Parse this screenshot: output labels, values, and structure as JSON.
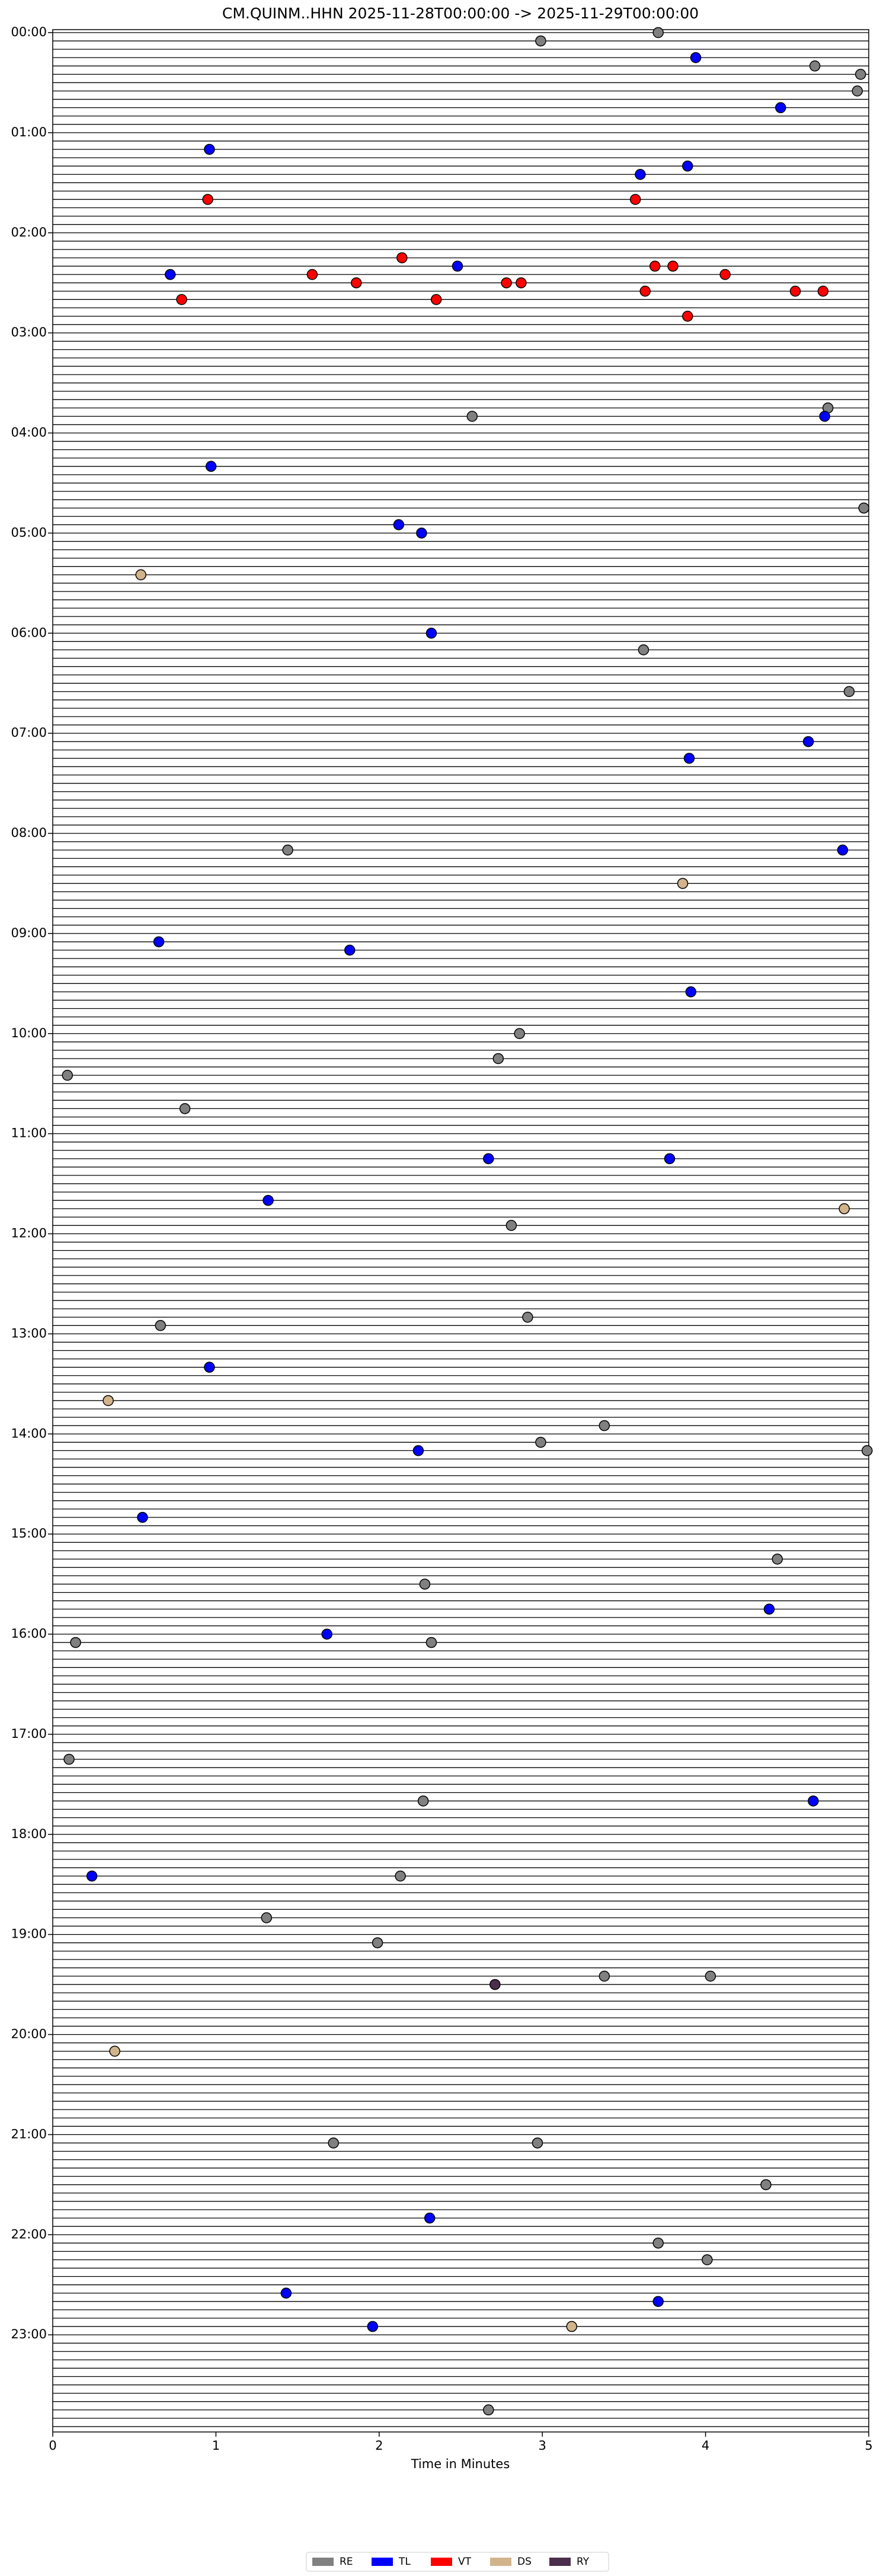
{
  "chart_data": {
    "type": "scatter",
    "title": "CM.QUINM..HHN  2025-11-28T00:00:00 -> 2025-11-29T00:00:00",
    "x_label": "Time in Minutes",
    "xlim": [
      0,
      5
    ],
    "xticks": [
      0,
      1,
      2,
      3,
      4,
      5
    ],
    "ylim": [
      0,
      1440
    ],
    "yticks": [
      {
        "value": 0,
        "label": "00:00"
      },
      {
        "value": 60,
        "label": "01:00"
      },
      {
        "value": 120,
        "label": "02:00"
      },
      {
        "value": 180,
        "label": "03:00"
      },
      {
        "value": 240,
        "label": "04:00"
      },
      {
        "value": 300,
        "label": "05:00"
      },
      {
        "value": 360,
        "label": "06:00"
      },
      {
        "value": 420,
        "label": "07:00"
      },
      {
        "value": 480,
        "label": "08:00"
      },
      {
        "value": 540,
        "label": "09:00"
      },
      {
        "value": 600,
        "label": "10:00"
      },
      {
        "value": 660,
        "label": "11:00"
      },
      {
        "value": 720,
        "label": "12:00"
      },
      {
        "value": 780,
        "label": "13:00"
      },
      {
        "value": 840,
        "label": "14:00"
      },
      {
        "value": 900,
        "label": "15:00"
      },
      {
        "value": 960,
        "label": "16:00"
      },
      {
        "value": 1020,
        "label": "17:00"
      },
      {
        "value": 1080,
        "label": "18:00"
      },
      {
        "value": 1140,
        "label": "19:00"
      },
      {
        "value": 1200,
        "label": "20:00"
      },
      {
        "value": 1260,
        "label": "21:00"
      },
      {
        "value": 1320,
        "label": "22:00"
      },
      {
        "value": 1380,
        "label": "23:00"
      }
    ],
    "legend": "lower center",
    "series": [
      {
        "name": "RE",
        "color": "#808080",
        "x": [
          3.71,
          2.99,
          4.67,
          4.95,
          4.93,
          2.57,
          4.75,
          4.97,
          3.62,
          4.88,
          1.44,
          2.86,
          2.73,
          0.09,
          0.81,
          2.81,
          0.66,
          2.91,
          3.38,
          2.99,
          4.99,
          4.44,
          2.28,
          2.32,
          0.14,
          0.1,
          2.27,
          2.13,
          1.31,
          1.99,
          3.38,
          4.03,
          1.72,
          2.97,
          4.37,
          3.71,
          4.01,
          2.67
        ],
        "y": [
          0,
          5,
          20,
          25,
          35,
          230,
          225,
          285,
          370,
          395,
          490,
          600,
          615,
          625,
          645,
          715,
          775,
          770,
          835,
          845,
          850,
          915,
          930,
          965,
          965,
          1035,
          1060,
          1105,
          1130,
          1145,
          1165,
          1165,
          1265,
          1265,
          1290,
          1325,
          1335,
          1425
        ]
      },
      {
        "name": "TL",
        "color": "#0000ff",
        "x": [
          3.94,
          4.46,
          0.96,
          3.89,
          3.6,
          0.72,
          2.48,
          4.73,
          0.97,
          2.12,
          2.26,
          2.32,
          3.9,
          4.63,
          4.84,
          0.65,
          1.82,
          3.91,
          2.67,
          3.78,
          1.32,
          0.96,
          2.24,
          0.55,
          4.39,
          1.68,
          4.66,
          0.24,
          2.31,
          1.43,
          1.96,
          3.71
        ],
        "y": [
          15,
          45,
          70,
          80,
          85,
          145,
          140,
          230,
          260,
          295,
          300,
          360,
          435,
          425,
          490,
          545,
          550,
          575,
          675,
          675,
          700,
          800,
          850,
          890,
          945,
          960,
          1060,
          1105,
          1310,
          1355,
          1375,
          1360
        ]
      },
      {
        "name": "VT",
        "color": "#ff0000",
        "x": [
          0.95,
          3.57,
          2.14,
          1.59,
          0.79,
          1.86,
          2.35,
          2.78,
          2.87,
          3.69,
          3.8,
          4.12,
          3.63,
          3.89,
          4.55,
          4.72
        ],
        "y": [
          100,
          100,
          135,
          145,
          160,
          150,
          160,
          150,
          150,
          140,
          140,
          145,
          155,
          170,
          155,
          155
        ]
      },
      {
        "name": "DS",
        "color": "#d2b48c",
        "x": [
          0.54,
          3.86,
          4.85,
          0.34,
          3.18,
          0.38
        ],
        "y": [
          325,
          510,
          705,
          820,
          1375,
          1210
        ]
      },
      {
        "name": "RY",
        "color": "#4b2e4b",
        "x": [
          2.71
        ],
        "y": [
          1170
        ]
      }
    ]
  }
}
